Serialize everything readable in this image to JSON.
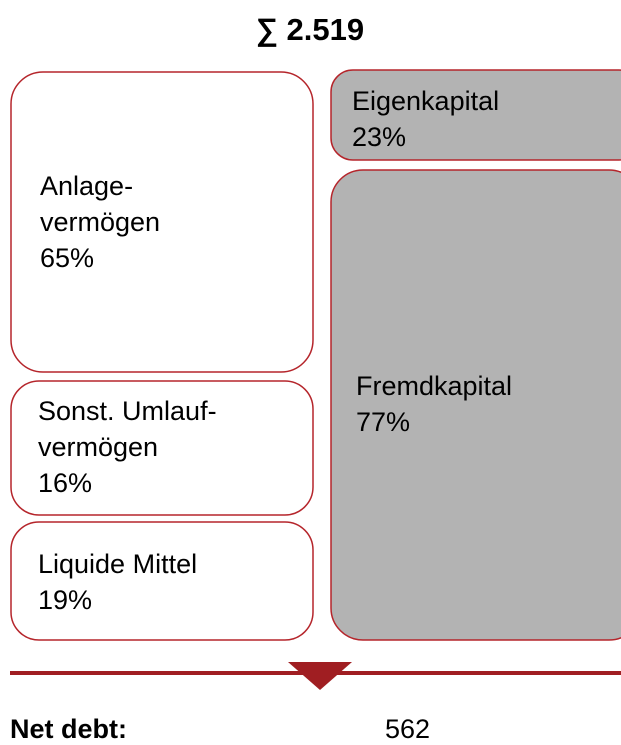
{
  "title": "∑ 2.519",
  "assets": [
    {
      "lines": [
        "Anlage-",
        "vermögen"
      ],
      "share": "65%"
    },
    {
      "lines": [
        "Sonst. Umlauf-",
        "vermögen"
      ],
      "share": "16%"
    },
    {
      "lines": [
        "Liquide Mittel"
      ],
      "share": "19%"
    }
  ],
  "liabilities": [
    {
      "lines": [
        "Eigenkapital"
      ],
      "share": "23%"
    },
    {
      "lines": [
        "Fremdkapital"
      ],
      "share": "77%"
    }
  ],
  "net_debt": {
    "label": "Net debt:",
    "value": "562"
  }
}
